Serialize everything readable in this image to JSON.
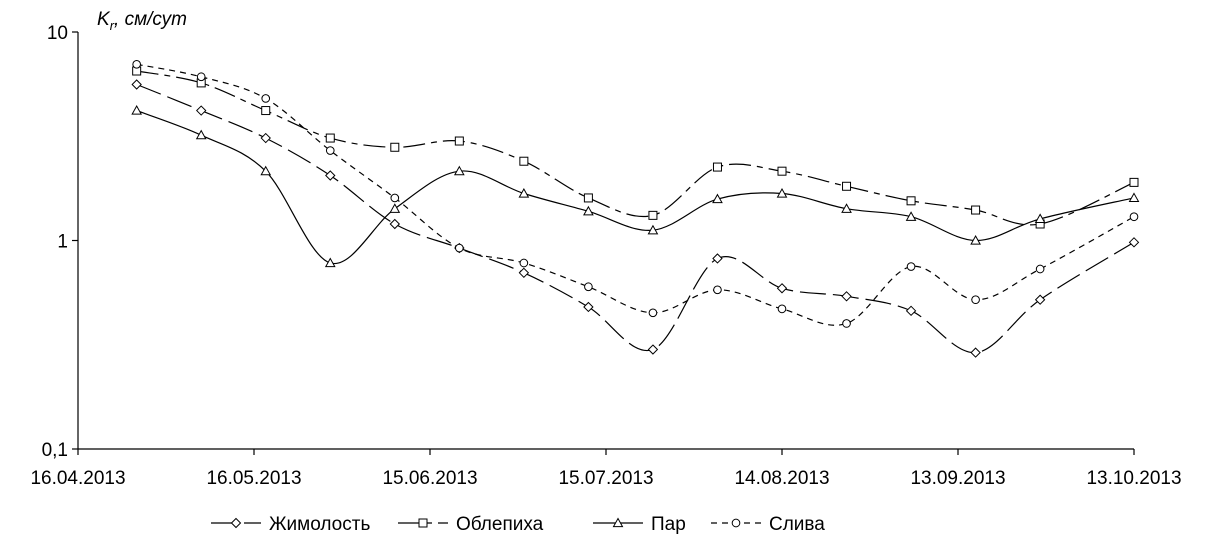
{
  "chart_data": {
    "type": "line",
    "title": "",
    "xlabel": "",
    "ylabel": "K r , см/сут",
    "ylabel_parts": {
      "symbol": "K",
      "subscript": "r",
      "unit": ", см/сут"
    },
    "y_scale": "log",
    "ylim": [
      0.1,
      10
    ],
    "y_ticks": [
      10,
      1,
      0.1
    ],
    "y_tick_labels": [
      "10",
      "1",
      "0,1"
    ],
    "xlim": [
      "2013-04-16",
      "2013-10-13"
    ],
    "x_ticks": [
      "2013-04-16",
      "2013-05-16",
      "2013-06-15",
      "2013-07-15",
      "2013-08-14",
      "2013-09-13",
      "2013-10-13"
    ],
    "x_tick_labels": [
      "16.04.2013",
      "16.05.2013",
      "15.06.2013",
      "15.07.2013",
      "14.08.2013",
      "13.09.2013",
      "13.10.2013"
    ],
    "grid": false,
    "legend_position": "bottom",
    "x": [
      "2013-04-26",
      "2013-05-07",
      "2013-05-18",
      "2013-05-29",
      "2013-06-09",
      "2013-06-20",
      "2013-07-01",
      "2013-07-12",
      "2013-07-23",
      "2013-08-03",
      "2013-08-14",
      "2013-08-25",
      "2013-09-05",
      "2013-09-16",
      "2013-09-27",
      "2013-10-13"
    ],
    "series": [
      {
        "name": "Жимолость",
        "marker": "diamond",
        "dash": "long",
        "color": "#000000",
        "values": [
          5.6,
          4.2,
          3.1,
          2.05,
          1.2,
          0.92,
          0.7,
          0.48,
          0.3,
          0.82,
          0.59,
          0.54,
          0.46,
          0.29,
          0.52,
          0.98
        ]
      },
      {
        "name": "Облепиха",
        "marker": "square",
        "dash": "longshort",
        "color": "#000000",
        "values": [
          6.5,
          5.7,
          4.2,
          3.1,
          2.8,
          3.0,
          2.4,
          1.6,
          1.32,
          2.25,
          2.15,
          1.82,
          1.55,
          1.4,
          1.2,
          1.9
        ]
      },
      {
        "name": "Пар",
        "marker": "triangle",
        "dash": "solid",
        "color": "#000000",
        "values": [
          4.2,
          3.2,
          2.15,
          0.78,
          1.42,
          2.15,
          1.68,
          1.38,
          1.12,
          1.58,
          1.68,
          1.42,
          1.3,
          1.0,
          1.27,
          1.6
        ]
      },
      {
        "name": "Слива",
        "marker": "circle",
        "dash": "short",
        "color": "#000000",
        "values": [
          7.0,
          6.1,
          4.8,
          2.7,
          1.6,
          0.92,
          0.78,
          0.6,
          0.45,
          0.58,
          0.47,
          0.4,
          0.75,
          0.52,
          0.73,
          1.3
        ]
      }
    ]
  }
}
